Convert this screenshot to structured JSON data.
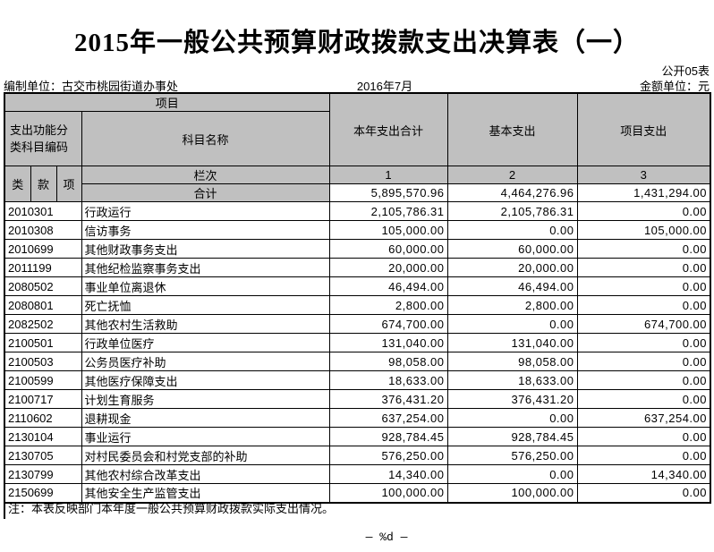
{
  "page": {
    "title": "2015年一般公共预算财政拨款支出决算表（一）",
    "doc_label": "公开05表",
    "prepared_by": "编制单位：古交市桃园街道办事处",
    "period": "2016年7月",
    "unit_label": "金额单位：元",
    "note": "注：本表反映部门本年度一般公共预算财政拨款实际支出情况。",
    "footer": "— %d —"
  },
  "colors": {
    "header_bg": "#c0c0c0",
    "border": "#000000",
    "page_bg": "#ffffff"
  },
  "table": {
    "header": {
      "project": "项目",
      "code_label": "支出功能分类科目编码",
      "subject_name": "科目名称",
      "col_total": "本年支出合计",
      "col_basic": "基本支出",
      "col_project": "项目支出",
      "class": "类",
      "section": "款",
      "item": "项",
      "rank_label": "栏次",
      "col_nums": [
        "1",
        "2",
        "3"
      ],
      "total_label": "合计"
    },
    "total_row": [
      "5,895,570.96",
      "4,464,276.96",
      "1,431,294.00"
    ],
    "rows": [
      {
        "code": "2010301",
        "name": "行政运行",
        "total": "2,105,786.31",
        "basic": "2,105,786.31",
        "project": "0.00"
      },
      {
        "code": "2010308",
        "name": "信访事务",
        "total": "105,000.00",
        "basic": "0.00",
        "project": "105,000.00"
      },
      {
        "code": "2010699",
        "name": "其他财政事务支出",
        "total": "60,000.00",
        "basic": "60,000.00",
        "project": "0.00"
      },
      {
        "code": "2011199",
        "name": "其他纪检监察事务支出",
        "total": "20,000.00",
        "basic": "20,000.00",
        "project": "0.00"
      },
      {
        "code": "2080502",
        "name": "事业单位离退休",
        "total": "46,494.00",
        "basic": "46,494.00",
        "project": "0.00"
      },
      {
        "code": "2080801",
        "name": "死亡抚恤",
        "total": "2,800.00",
        "basic": "2,800.00",
        "project": "0.00"
      },
      {
        "code": "2082502",
        "name": "其他农村生活救助",
        "total": "674,700.00",
        "basic": "0.00",
        "project": "674,700.00"
      },
      {
        "code": "2100501",
        "name": "行政单位医疗",
        "total": "131,040.00",
        "basic": "131,040.00",
        "project": "0.00"
      },
      {
        "code": "2100503",
        "name": "公务员医疗补助",
        "total": "98,058.00",
        "basic": "98,058.00",
        "project": "0.00"
      },
      {
        "code": "2100599",
        "name": "其他医疗保障支出",
        "total": "18,633.00",
        "basic": "18,633.00",
        "project": "0.00"
      },
      {
        "code": "2100717",
        "name": "计划生育服务",
        "total": "376,431.20",
        "basic": "376,431.20",
        "project": "0.00"
      },
      {
        "code": "2110602",
        "name": "退耕现金",
        "total": "637,254.00",
        "basic": "0.00",
        "project": "637,254.00"
      },
      {
        "code": "2130104",
        "name": "事业运行",
        "total": "928,784.45",
        "basic": "928,784.45",
        "project": "0.00"
      },
      {
        "code": "2130705",
        "name": "对村民委员会和村党支部的补助",
        "total": "576,250.00",
        "basic": "576,250.00",
        "project": "0.00"
      },
      {
        "code": "2130799",
        "name": "其他农村综合改革支出",
        "total": "14,340.00",
        "basic": "0.00",
        "project": "14,340.00"
      },
      {
        "code": "2150699",
        "name": "其他安全生产监管支出",
        "total": "100,000.00",
        "basic": "100,000.00",
        "project": "0.00"
      }
    ]
  }
}
